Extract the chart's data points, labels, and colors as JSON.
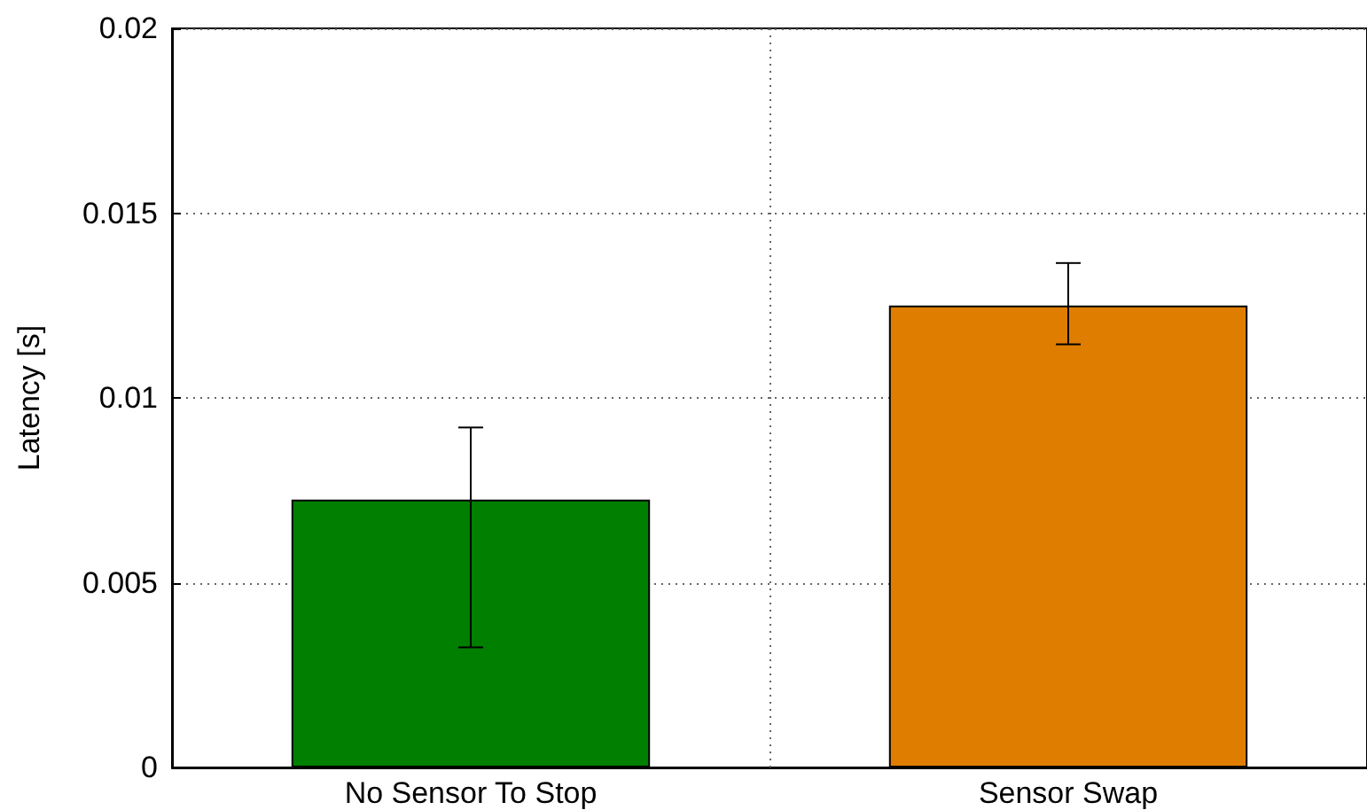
{
  "chart_data": {
    "type": "bar",
    "ylabel": "Latency [s]",
    "categories": [
      "No Sensor To Stop",
      "Sensor Swap"
    ],
    "values": [
      0.00725,
      0.0125
    ],
    "colors": [
      "#007f00",
      "#df7d00"
    ],
    "errors": [
      [
        0.00325,
        0.0092
      ],
      [
        0.01145,
        0.01365
      ]
    ],
    "ylim": [
      0,
      0.02
    ],
    "yticks": [
      0,
      0.005,
      0.01,
      0.015,
      0.02
    ],
    "grid": true
  }
}
